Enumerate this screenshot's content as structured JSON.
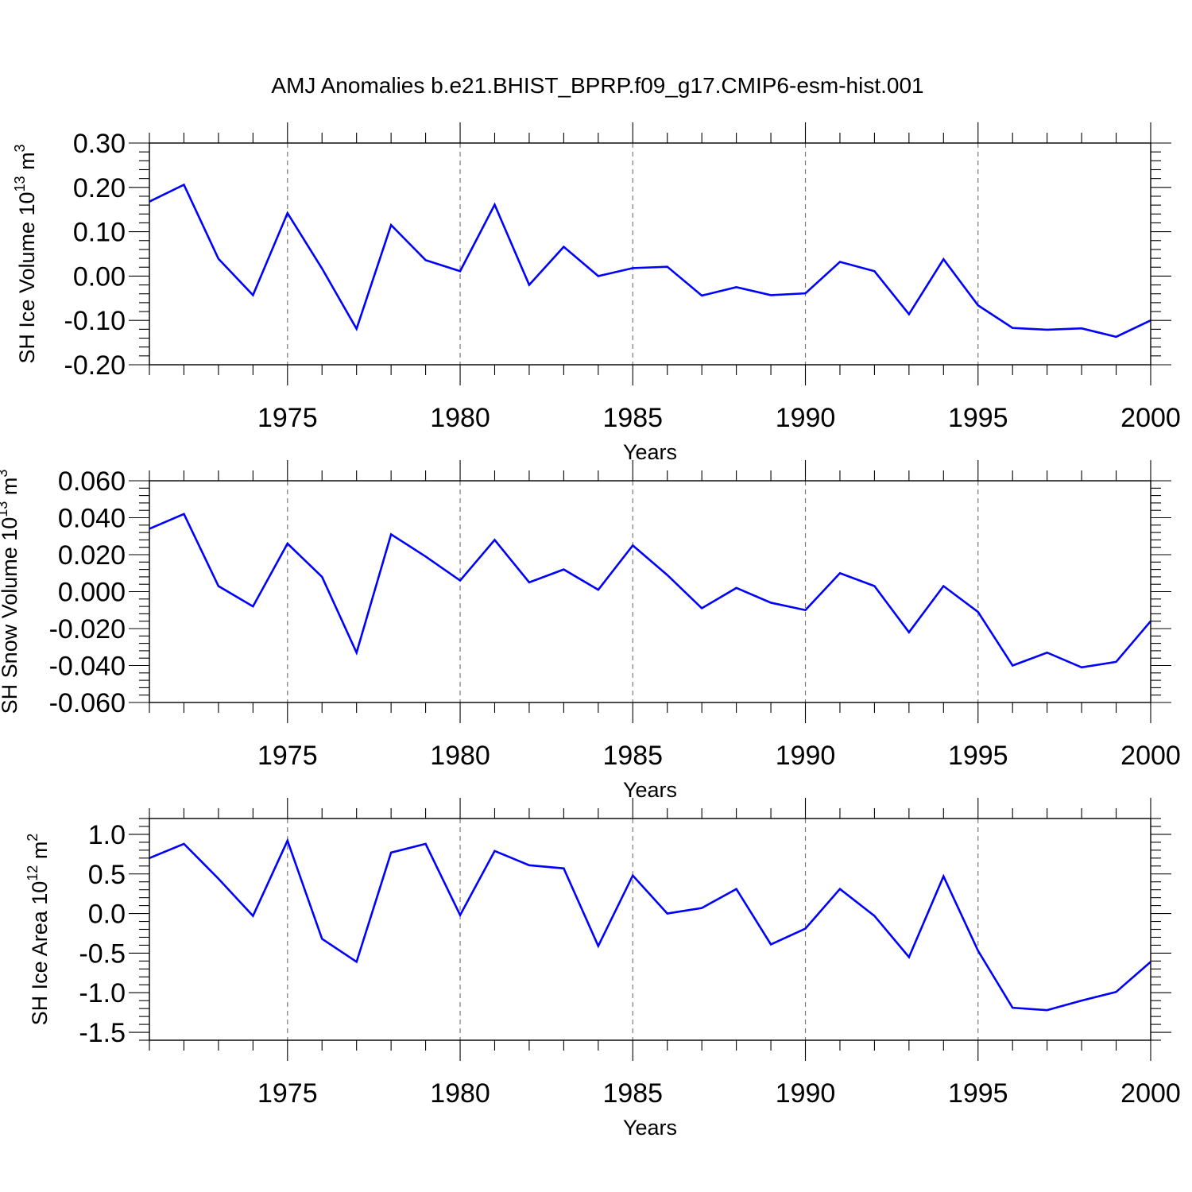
{
  "figure_title": "AMJ Anomalies b.e21.BHIST_BPRP.f09_g17.CMIP6-esm-hist.001",
  "series_color": "#0000ff",
  "chart_data": [
    {
      "type": "line",
      "title": "AMJ Anomalies b.e21.BHIST_BPRP.f09_g17.CMIP6-esm-hist.001",
      "xlabel": "Years",
      "ylabel_parts": [
        "SH Ice Volume 10",
        "13",
        " m",
        "3"
      ],
      "xlim": [
        1971,
        2000
      ],
      "ylim": [
        -0.2,
        0.3
      ],
      "yticks": [
        -0.2,
        -0.1,
        0.0,
        0.1,
        0.2,
        0.3
      ],
      "ytick_labels": [
        "-0.20",
        "-0.10",
        "0.00",
        "0.10",
        "0.20",
        "0.30"
      ],
      "xticks": [
        1975,
        1980,
        1985,
        1990,
        1995,
        2000
      ],
      "xtick_labels": [
        "1975",
        "1980",
        "1985",
        "1990",
        "1995",
        "2000"
      ],
      "grid": "vertical dashed at major x ticks",
      "x": [
        1971,
        1972,
        1973,
        1974,
        1975,
        1976,
        1977,
        1978,
        1979,
        1980,
        1981,
        1982,
        1983,
        1984,
        1985,
        1986,
        1987,
        1988,
        1989,
        1990,
        1991,
        1992,
        1993,
        1994,
        1995,
        1996,
        1997,
        1998,
        1999,
        2000
      ],
      "series": [
        {
          "name": "SH Ice Volume",
          "values": [
            0.168,
            0.206,
            0.039,
            -0.043,
            0.142,
            0.017,
            -0.119,
            0.115,
            0.036,
            0.011,
            0.161,
            -0.02,
            0.066,
            0.0,
            0.018,
            0.021,
            -0.044,
            -0.025,
            -0.043,
            -0.039,
            0.032,
            0.011,
            -0.086,
            0.038,
            -0.066,
            -0.117,
            -0.121,
            -0.118,
            -0.137,
            -0.1
          ]
        }
      ]
    },
    {
      "type": "line",
      "xlabel": "Years",
      "ylabel_parts": [
        "SH Snow Volume 10",
        "13",
        " m",
        "3"
      ],
      "xlim": [
        1971,
        2000
      ],
      "ylim": [
        -0.06,
        0.06
      ],
      "yticks": [
        -0.06,
        -0.04,
        -0.02,
        0.0,
        0.02,
        0.04,
        0.06
      ],
      "ytick_labels": [
        "-0.060",
        "-0.040",
        "-0.020",
        "0.000",
        "0.020",
        "0.040",
        "0.060"
      ],
      "xticks": [
        1975,
        1980,
        1985,
        1990,
        1995,
        2000
      ],
      "xtick_labels": [
        "1975",
        "1980",
        "1985",
        "1990",
        "1995",
        "2000"
      ],
      "grid": "vertical dashed at major x ticks",
      "x": [
        1971,
        1972,
        1973,
        1974,
        1975,
        1976,
        1977,
        1978,
        1979,
        1980,
        1981,
        1982,
        1983,
        1984,
        1985,
        1986,
        1987,
        1988,
        1989,
        1990,
        1991,
        1992,
        1993,
        1994,
        1995,
        1996,
        1997,
        1998,
        1999,
        2000
      ],
      "series": [
        {
          "name": "SH Snow Volume",
          "values": [
            0.034,
            0.042,
            0.003,
            -0.008,
            0.026,
            0.008,
            -0.033,
            0.031,
            0.019,
            0.006,
            0.028,
            0.005,
            0.012,
            0.001,
            0.025,
            0.009,
            -0.009,
            0.002,
            -0.006,
            -0.01,
            0.01,
            0.003,
            -0.022,
            0.003,
            -0.011,
            -0.04,
            -0.033,
            -0.041,
            -0.038,
            -0.016
          ]
        }
      ]
    },
    {
      "type": "line",
      "xlabel": "Years",
      "ylabel_parts": [
        "SH Ice Area 10",
        "12",
        " m",
        "2"
      ],
      "xlim": [
        1971,
        2000
      ],
      "ylim": [
        -1.6,
        1.2
      ],
      "yticks": [
        -1.5,
        -1.0,
        -0.5,
        0.0,
        0.5,
        1.0
      ],
      "ytick_labels": [
        "-1.5",
        "-1.0",
        "-0.5",
        "0.0",
        "0.5",
        "1.0"
      ],
      "xticks": [
        1975,
        1980,
        1985,
        1990,
        1995,
        2000
      ],
      "xtick_labels": [
        "1975",
        "1980",
        "1985",
        "1990",
        "1995",
        "2000"
      ],
      "grid": "vertical dashed at major x ticks",
      "x": [
        1971,
        1972,
        1973,
        1974,
        1975,
        1976,
        1977,
        1978,
        1979,
        1980,
        1981,
        1982,
        1983,
        1984,
        1985,
        1986,
        1987,
        1988,
        1989,
        1990,
        1991,
        1992,
        1993,
        1994,
        1995,
        1996,
        1997,
        1998,
        1999,
        2000
      ],
      "series": [
        {
          "name": "SH Ice Area",
          "values": [
            0.7,
            0.88,
            0.44,
            -0.03,
            0.92,
            -0.32,
            -0.61,
            0.77,
            0.88,
            -0.02,
            0.79,
            0.61,
            0.57,
            -0.41,
            0.48,
            0.0,
            0.07,
            0.31,
            -0.39,
            -0.19,
            0.31,
            -0.03,
            -0.55,
            0.47,
            -0.47,
            -1.19,
            -1.22,
            -1.1,
            -0.99,
            -0.61
          ]
        }
      ]
    }
  ]
}
